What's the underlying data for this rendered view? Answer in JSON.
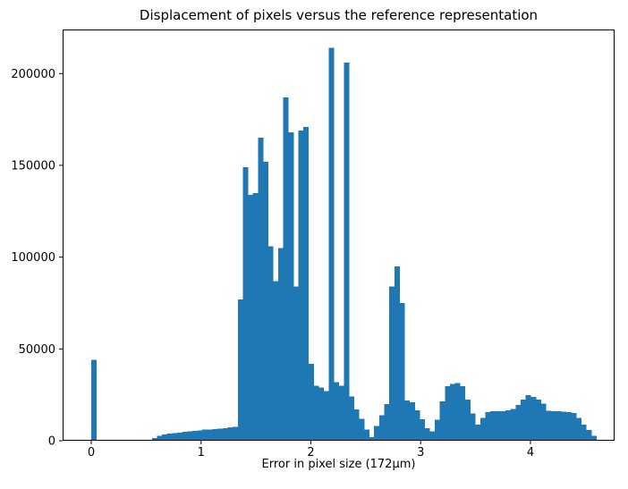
{
  "chart_data": {
    "type": "bar",
    "subtype": "histogram",
    "title": "Displacement of pixels versus the reference representation",
    "xlabel": "Error in pixel size (172µm)",
    "ylabel": "",
    "bar_color": "#1f77b4",
    "axis_color": "#000000",
    "background_color": "#ffffff",
    "grid": false,
    "legend": "none",
    "xlim": [
      -0.261,
      4.766
    ],
    "ylim": [
      0,
      224000
    ],
    "xticks": [
      0,
      1,
      2,
      3,
      4
    ],
    "xtick_labels": [
      "0",
      "1",
      "2",
      "3",
      "4"
    ],
    "yticks": [
      0,
      50000,
      100000,
      150000,
      200000
    ],
    "ytick_labels": [
      "0",
      "50000",
      "100000",
      "150000",
      "200000"
    ],
    "bin_start": 0.0,
    "bin_width": 0.046,
    "values": [
      44000,
      0,
      0,
      0,
      0,
      0,
      0,
      0,
      0,
      0,
      0,
      0,
      1500,
      2600,
      3400,
      3800,
      4200,
      4500,
      4800,
      5100,
      5400,
      5700,
      6000,
      6200,
      6400,
      6600,
      6800,
      7200,
      7600,
      77000,
      149000,
      134000,
      135000,
      165000,
      152000,
      106000,
      87000,
      105000,
      187000,
      168000,
      84000,
      169000,
      171000,
      42000,
      30000,
      29000,
      27000,
      214000,
      32000,
      30000,
      206000,
      24000,
      17000,
      12000,
      6000,
      2000,
      8000,
      14000,
      20000,
      84000,
      95000,
      75000,
      22000,
      21000,
      16500,
      11600,
      6800,
      5200,
      11500,
      21400,
      29800,
      30900,
      31400,
      29800,
      22500,
      14900,
      8700,
      12500,
      15500,
      16000,
      16000,
      16000,
      16500,
      17300,
      19600,
      22500,
      24900,
      23800,
      22500,
      20100,
      16300,
      16000,
      16000,
      15800,
      15500,
      15200,
      12500,
      8700,
      5800,
      2800
    ]
  }
}
